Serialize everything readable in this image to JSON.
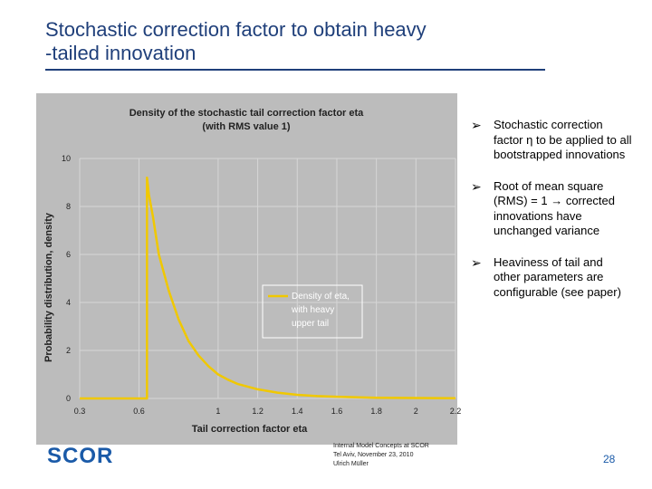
{
  "slide": {
    "title_line1": "Stochastic correction factor to obtain heavy",
    "title_line2": "-tailed innovation",
    "footer": {
      "line1": "Internal Model Concepts at SCOR",
      "line2": "Tel Aviv, November 23, 2010",
      "line3": "Ulrich Müller"
    },
    "page_number": "28",
    "logo_text": "SCOR",
    "accent_color": "#1f3f7a",
    "logo_color": "#1a5aa8"
  },
  "bullets": [
    {
      "text": "Stochastic correction factor η to be applied to all bootstrapped innovations"
    },
    {
      "text": "Root of mean square (RMS) = 1 → corrected innovations have unchanged variance"
    },
    {
      "text": "Heaviness of tail and other parameters are configurable (see paper)"
    }
  ],
  "chart_data": {
    "type": "line",
    "title_line1": "Density of the stochastic tail correction factor eta",
    "title_line2": "(with RMS value 1)",
    "xlabel": "Tail correction factor eta",
    "ylabel": "Probability distribution, density",
    "xlim": [
      0.3,
      2.2
    ],
    "ylim": [
      0,
      10
    ],
    "x_ticks": [
      "0.3",
      "0.6",
      "1",
      "1.2",
      "1.4",
      "1.6",
      "1.8",
      "2",
      "2.2"
    ],
    "y_ticks": [
      "0",
      "2",
      "4",
      "6",
      "8",
      "10"
    ],
    "grid": true,
    "background": "#bcbcbc",
    "line_color": "#f0c800",
    "legend": {
      "line1": "Density of eta,",
      "line2": "with heavy",
      "line3": "upper tail",
      "placement": "center"
    },
    "series": [
      {
        "x": [
          0.3,
          0.64,
          0.64,
          0.65,
          0.67,
          0.7,
          0.75,
          0.8,
          0.85,
          0.9,
          0.95,
          1.0,
          1.05,
          1.1,
          1.2,
          1.3,
          1.4,
          1.5,
          1.6,
          1.8,
          2.0,
          2.2
        ],
        "y": [
          0,
          0,
          9.2,
          8.5,
          7.6,
          6.0,
          4.5,
          3.3,
          2.4,
          1.8,
          1.35,
          1.0,
          0.78,
          0.6,
          0.38,
          0.24,
          0.15,
          0.1,
          0.07,
          0.03,
          0.02,
          0.01
        ]
      }
    ]
  }
}
